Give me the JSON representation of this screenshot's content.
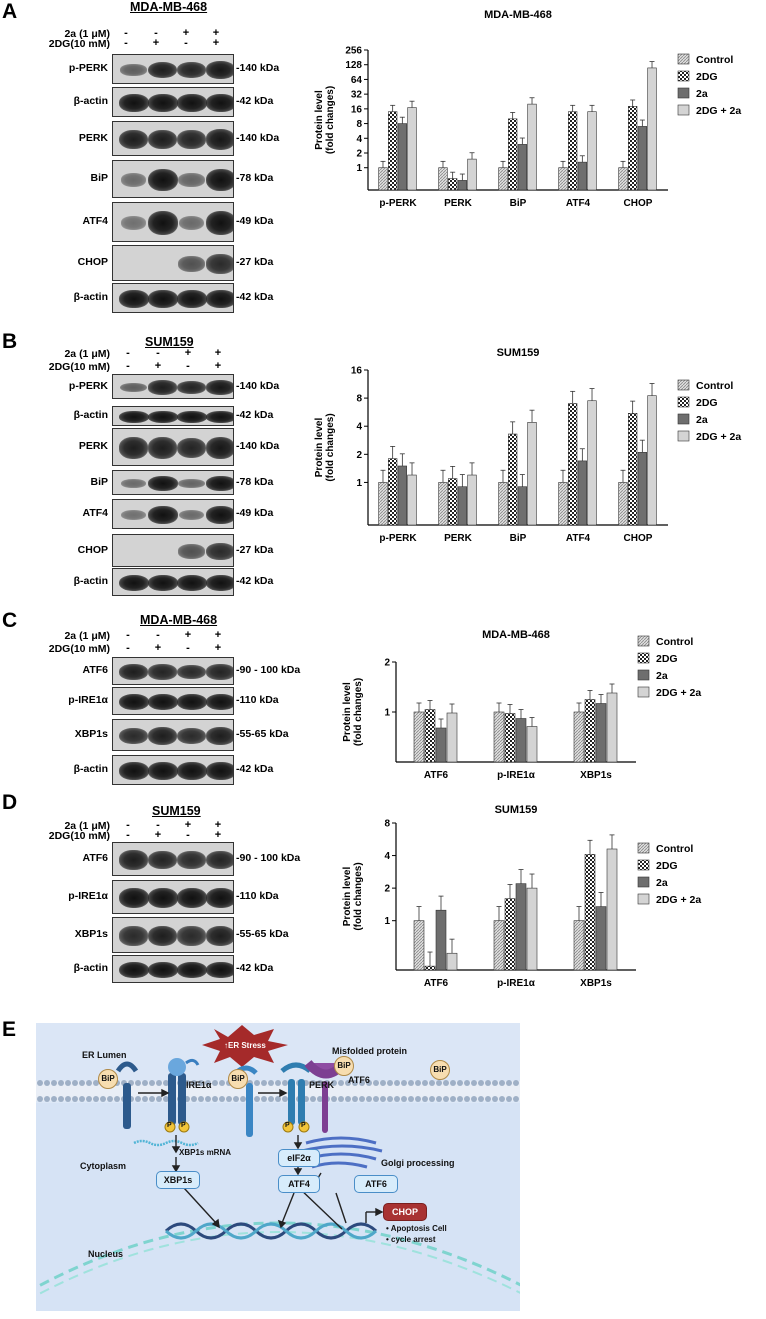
{
  "panels": [
    {
      "label": "A",
      "cell_line": "MDA-MB-468",
      "treatments": [
        {
          "label": "2a (1 μM)",
          "signs": [
            "-",
            "-",
            "+",
            "+"
          ]
        },
        {
          "label": "2DG(10 mM)",
          "signs": [
            "-",
            "+",
            "-",
            "+"
          ]
        }
      ],
      "blots": [
        {
          "name": "p-PERK",
          "kda": "-140 kDa"
        },
        {
          "name": "β-actin",
          "kda": "-42 kDa"
        },
        {
          "name": "PERK",
          "kda": "-140 kDa"
        },
        {
          "name": "BiP",
          "kda": "-78 kDa"
        },
        {
          "name": "ATF4",
          "kda": "-49 kDa"
        },
        {
          "name": "CHOP",
          "kda": "-27 kDa"
        },
        {
          "name": "β-actin",
          "kda": "-42 kDa"
        }
      ]
    },
    {
      "label": "B",
      "cell_line": "SUM159",
      "treatments": [
        {
          "label": "2a (1 μM)",
          "signs": [
            "-",
            "-",
            "+",
            "+"
          ]
        },
        {
          "label": "2DG(10 mM)",
          "signs": [
            "-",
            "+",
            "-",
            "+"
          ]
        }
      ],
      "blots": [
        {
          "name": "p-PERK",
          "kda": "-140 kDa"
        },
        {
          "name": "β-actin",
          "kda": "-42 kDa"
        },
        {
          "name": "PERK",
          "kda": "-140 kDa"
        },
        {
          "name": "BiP",
          "kda": "-78 kDa"
        },
        {
          "name": "ATF4",
          "kda": "-49 kDa"
        },
        {
          "name": "CHOP",
          "kda": "-27 kDa"
        },
        {
          "name": "β-actin",
          "kda": "-42 kDa"
        }
      ]
    },
    {
      "label": "C",
      "cell_line": "MDA-MB-468",
      "treatments": [
        {
          "label": "2a (1 μM)",
          "signs": [
            "-",
            "-",
            "+",
            "+"
          ]
        },
        {
          "label": "2DG(10 mM)",
          "signs": [
            "-",
            "+",
            "-",
            "+"
          ]
        }
      ],
      "blots": [
        {
          "name": "ATF6",
          "kda": "-90 - 100 kDa"
        },
        {
          "name": "p-IRE1α",
          "kda": "-110 kDa"
        },
        {
          "name": "XBP1s",
          "kda": "-55-65 kDa"
        },
        {
          "name": "β-actin",
          "kda": "-42 kDa"
        }
      ]
    },
    {
      "label": "D",
      "cell_line": "SUM159",
      "treatments": [
        {
          "label": "2a (1 μM)",
          "signs": [
            "-",
            "-",
            "+",
            "+"
          ]
        },
        {
          "label": "2DG(10 mM)",
          "signs": [
            "-",
            "+",
            "-",
            "+"
          ]
        }
      ],
      "blots": [
        {
          "name": "ATF6",
          "kda": "-90 - 100 kDa"
        },
        {
          "name": "p-IRE1α",
          "kda": "-110 kDa"
        },
        {
          "name": "XBP1s",
          "kda": "-55-65 kDa"
        },
        {
          "name": "β-actin",
          "kda": "-42 kDa"
        }
      ]
    }
  ],
  "legend": [
    "Control",
    "2DG",
    "2a",
    "2DG + 2a"
  ],
  "chart_data": [
    {
      "type": "bar",
      "title": "MDA-MB-468",
      "ylabel": "Protein level (fold changes)",
      "yscale": "log2",
      "ylim": [
        0.35,
        256
      ],
      "yticks": [
        "1",
        "2",
        "4",
        "8",
        "16",
        "32",
        "64",
        "128",
        "256"
      ],
      "categories": [
        "p-PERK",
        "PERK",
        "BiP",
        "ATF4",
        "CHOP"
      ],
      "series": [
        {
          "name": "Control",
          "values": [
            1,
            1,
            1,
            1,
            1
          ]
        },
        {
          "name": "2DG",
          "values": [
            14,
            0.6,
            10,
            14,
            18
          ]
        },
        {
          "name": "2a",
          "values": [
            8,
            0.55,
            3,
            1.3,
            7
          ]
        },
        {
          "name": "2DG + 2a",
          "values": [
            17,
            1.5,
            20,
            14,
            110
          ]
        }
      ],
      "legend_position": "right"
    },
    {
      "type": "bar",
      "title": "SUM159",
      "ylabel": "Protein level (fold changes)",
      "yscale": "log2",
      "ylim": [
        0.35,
        16
      ],
      "yticks": [
        "1",
        "2",
        "4",
        "8",
        "16"
      ],
      "categories": [
        "p-PERK",
        "PERK",
        "BiP",
        "ATF4",
        "CHOP"
      ],
      "series": [
        {
          "name": "Control",
          "values": [
            1,
            1,
            1,
            1,
            1
          ]
        },
        {
          "name": "2DG",
          "values": [
            1.8,
            1.1,
            3.3,
            7,
            5.5
          ]
        },
        {
          "name": "2a",
          "values": [
            1.5,
            0.9,
            0.9,
            1.7,
            2.1
          ]
        },
        {
          "name": "2DG + 2a",
          "values": [
            1.2,
            1.2,
            4.4,
            7.5,
            8.5
          ]
        }
      ],
      "legend_position": "right"
    },
    {
      "type": "bar",
      "title": "MDA-MB-468",
      "ylabel": "Protein level (fold changes)",
      "yscale": "linear",
      "ylim": [
        0,
        2
      ],
      "yticks": [
        "1",
        "2"
      ],
      "categories": [
        "ATF6",
        "p-IRE1α",
        "XBP1s"
      ],
      "series": [
        {
          "name": "Control",
          "values": [
            1,
            1,
            1
          ]
        },
        {
          "name": "2DG",
          "values": [
            1.05,
            0.97,
            1.25
          ]
        },
        {
          "name": "2a",
          "values": [
            0.68,
            0.87,
            1.17
          ]
        },
        {
          "name": "2DG + 2a",
          "values": [
            0.98,
            0.71,
            1.38
          ]
        }
      ],
      "legend_position": "right"
    },
    {
      "type": "bar",
      "title": "SUM159",
      "ylabel": "Protein level (fold changes)",
      "yscale": "log2",
      "ylim": [
        0.35,
        8
      ],
      "yticks": [
        "1",
        "2",
        "4",
        "8"
      ],
      "categories": [
        "ATF6",
        "p-IRE1α",
        "XBP1s"
      ],
      "series": [
        {
          "name": "Control",
          "values": [
            1,
            1,
            1
          ]
        },
        {
          "name": "2DG",
          "values": [
            0.38,
            1.6,
            4.1
          ]
        },
        {
          "name": "2a",
          "values": [
            1.25,
            2.2,
            1.35
          ]
        },
        {
          "name": "2DG + 2a",
          "values": [
            0.5,
            2.0,
            4.6
          ]
        }
      ],
      "legend_position": "right"
    }
  ],
  "diagram": {
    "label": "E",
    "er_stress": "ER Stress",
    "misfolded": "Misfolded protein",
    "er_lumen": "ER Lumen",
    "cytoplasm": "Cytoplasm",
    "nucleus": "Nucleus",
    "bip": "BiP",
    "p": "P",
    "ire1a": "IRE1α",
    "perk": "PERK",
    "atf6": "ATF6",
    "xbp1s_mrna": "XBP1s mRNA",
    "golgi": "Golgi processing",
    "xbp1s": "XBP1s",
    "eif2a": "eIF2α",
    "atf4": "ATF4",
    "atf6_box": "ATF6",
    "chop": "CHOP",
    "outcomes": [
      "Apoptosis Cell",
      "cycle arrest"
    ]
  }
}
